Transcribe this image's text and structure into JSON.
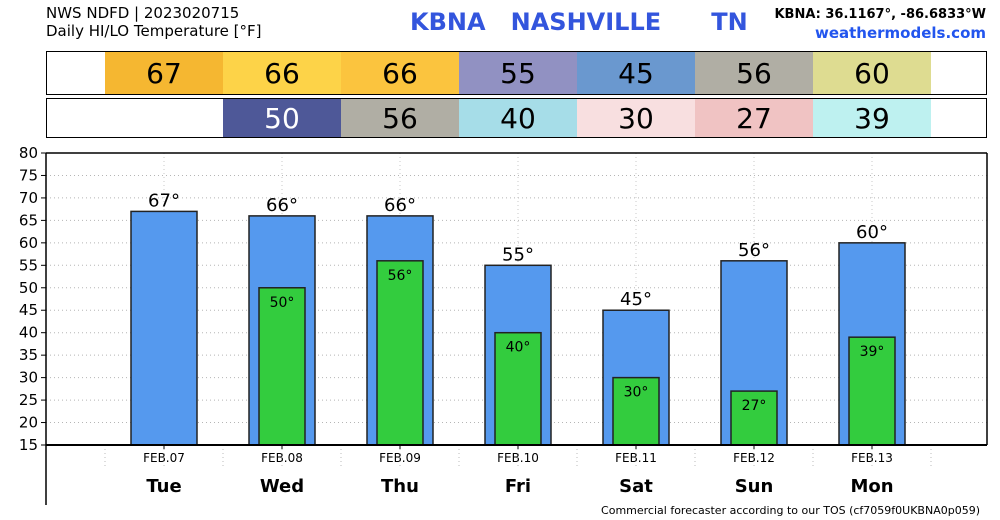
{
  "header": {
    "line1": "NWS NDFD | 2023020715",
    "line2": "Daily HI/LO Temperature [°F]",
    "station": "KBNA   NASHVILLE      TN",
    "coords": "KBNA: 36.1167°, -86.6833°W",
    "site": "weathermodels.com"
  },
  "hi_strip": [
    {
      "value": "67",
      "color": "#f5b731"
    },
    {
      "value": "66",
      "color": "#fdd348"
    },
    {
      "value": "66",
      "color": "#fbc43e"
    },
    {
      "value": "55",
      "color": "#9191c2"
    },
    {
      "value": "45",
      "color": "#6a98cf"
    },
    {
      "value": "56",
      "color": "#b0aea4"
    },
    {
      "value": "60",
      "color": "#dedc91"
    }
  ],
  "lo_strip": [
    {
      "value": "",
      "color": "#ffffff"
    },
    {
      "value": "50",
      "color": "#4e5898"
    },
    {
      "value": "56",
      "color": "#b0aea4"
    },
    {
      "value": "40",
      "color": "#a6dde8"
    },
    {
      "value": "30",
      "color": "#f8dfe0"
    },
    {
      "value": "27",
      "color": "#f0c3c3"
    },
    {
      "value": "39",
      "color": "#bef1f0"
    }
  ],
  "chart_data": {
    "type": "bar",
    "categories": [
      "Tue",
      "Wed",
      "Thu",
      "Fri",
      "Sat",
      "Sun",
      "Mon"
    ],
    "dates": [
      "FEB.07",
      "FEB.08",
      "FEB.09",
      "FEB.10",
      "FEB.11",
      "FEB.12",
      "FEB.13"
    ],
    "series": [
      {
        "values": [
          67,
          66,
          66,
          55,
          45,
          56,
          60
        ],
        "labels": [
          "67°",
          "66°",
          "66°",
          "55°",
          "45°",
          "56°",
          "60°"
        ],
        "color": "#5599ee"
      },
      {
        "values": [
          null,
          50,
          56,
          40,
          30,
          27,
          39
        ],
        "labels": [
          "",
          "50°",
          "56°",
          "40°",
          "30°",
          "27°",
          "39°"
        ],
        "color": "#33cc3e"
      }
    ],
    "ylim": [
      15,
      80
    ],
    "yticks": [
      "15",
      "20",
      "25",
      "30",
      "35",
      "40",
      "45",
      "50",
      "55",
      "60",
      "65",
      "70",
      "75",
      "80"
    ],
    "grid": true
  },
  "footer": "Commercial forecaster according to our TOS (cf7059f0UKBNA0p059)"
}
